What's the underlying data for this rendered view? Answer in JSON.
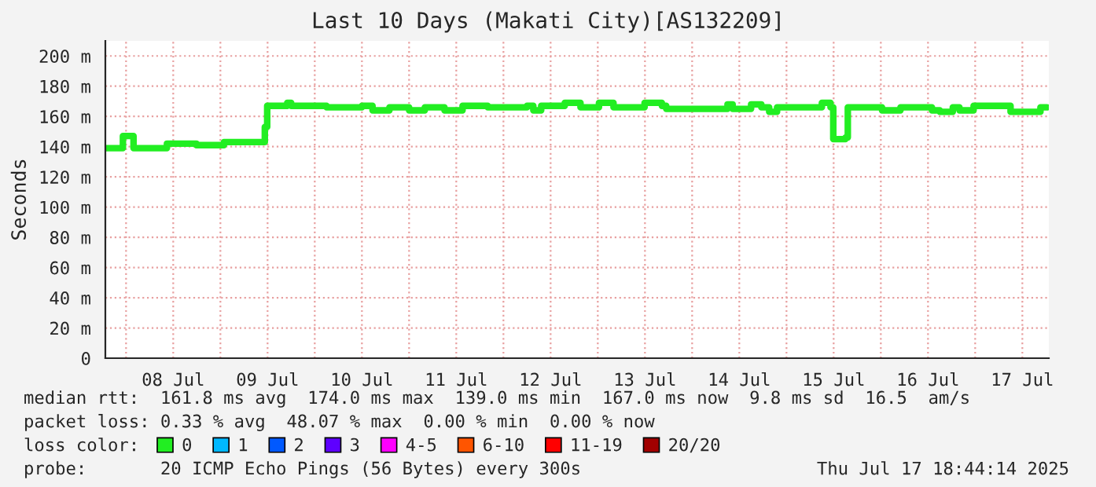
{
  "chart_data": {
    "type": "step",
    "title": "Last 10 Days (Makati City)[AS132209]",
    "ylabel": "Seconds",
    "x": [
      "2025-07-07T19:00",
      "2025-07-07T23:12",
      "2025-07-08T01:54",
      "2025-07-08T10:24",
      "2025-07-08T17:54",
      "2025-07-09T00:54",
      "2025-07-09T11:18",
      "2025-07-09T11:54",
      "2025-07-09T17:00",
      "2025-07-09T18:00",
      "2025-07-10T03:00",
      "2025-07-10T12:00",
      "2025-07-10T14:42",
      "2025-07-10T19:00",
      "2025-07-11T00:00",
      "2025-07-11T04:00",
      "2025-07-11T09:00",
      "2025-07-11T13:36",
      "2025-07-11T20:00",
      "2025-07-12T06:00",
      "2025-07-12T07:36",
      "2025-07-12T09:36",
      "2025-07-12T15:36",
      "2025-07-12T19:36",
      "2025-07-13T00:18",
      "2025-07-13T04:00",
      "2025-07-13T11:54",
      "2025-07-13T16:18",
      "2025-07-13T17:24",
      "2025-07-13T21:24",
      "2025-07-14T09:00",
      "2025-07-14T10:18",
      "2025-07-14T15:00",
      "2025-07-14T17:36",
      "2025-07-14T19:36",
      "2025-07-14T21:36",
      "2025-07-15T09:00",
      "2025-07-15T11:12",
      "2025-07-15T11:54",
      "2025-07-15T15:00",
      "2025-07-15T15:36",
      "2025-07-16T00:18",
      "2025-07-16T05:00",
      "2025-07-16T13:00",
      "2025-07-16T15:00",
      "2025-07-16T18:18",
      "2025-07-16T20:00",
      "2025-07-16T23:36",
      "2025-07-17T09:00",
      "2025-07-17T16:36",
      "2025-07-17T18:18"
    ],
    "series": [
      {
        "name": "0",
        "color": "#22ee22",
        "values": [
          139,
          147,
          139,
          142,
          141,
          143,
          153,
          167,
          169,
          167,
          166,
          167,
          164,
          166,
          164,
          166,
          164,
          167,
          166,
          167,
          164,
          167,
          169,
          166,
          169,
          166,
          169,
          167,
          165,
          165,
          168,
          165,
          168,
          166,
          163,
          166,
          169,
          166,
          145,
          146,
          166,
          164,
          166,
          164,
          163,
          166,
          164,
          167,
          163,
          166,
          166
        ]
      },
      {
        "name": "1",
        "color": "#00b8ff",
        "values": [
          null,
          null,
          null,
          null,
          null,
          null,
          null,
          null,
          null,
          null,
          null,
          null,
          null,
          null,
          null,
          null,
          null,
          null,
          null,
          null,
          null,
          null,
          null,
          null,
          null,
          null,
          null,
          null,
          null,
          null,
          null,
          null,
          null,
          null,
          null,
          null,
          null,
          null,
          null,
          null,
          null,
          null,
          null,
          null,
          null,
          null,
          null,
          null,
          null,
          null,
          null
        ]
      },
      {
        "name": "2",
        "color": "#0059ff",
        "values": [
          null,
          null,
          null,
          null,
          null,
          null,
          null,
          null,
          null,
          null,
          null,
          null,
          null,
          null,
          null,
          null,
          null,
          null,
          null,
          null,
          null,
          null,
          null,
          null,
          null,
          null,
          null,
          null,
          null,
          null,
          null,
          null,
          null,
          null,
          null,
          null,
          null,
          null,
          null,
          null,
          null,
          null,
          null,
          null,
          null,
          null,
          null,
          null,
          null,
          null,
          null
        ]
      },
      {
        "name": "3",
        "color": "#5e00ff",
        "values": [
          null,
          null,
          null,
          null,
          null,
          null,
          null,
          null,
          null,
          null,
          null,
          null,
          null,
          null,
          null,
          null,
          null,
          null,
          null,
          null,
          null,
          null,
          null,
          null,
          null,
          null,
          null,
          null,
          null,
          null,
          null,
          null,
          null,
          null,
          null,
          null,
          null,
          null,
          null,
          null,
          null,
          null,
          null,
          null,
          null,
          null,
          null,
          null,
          null,
          null,
          null
        ]
      },
      {
        "name": "4-5",
        "color": "#ff00ff",
        "values": [
          null,
          null,
          null,
          null,
          null,
          null,
          null,
          null,
          null,
          null,
          null,
          null,
          null,
          null,
          null,
          null,
          null,
          null,
          null,
          null,
          null,
          null,
          null,
          null,
          null,
          null,
          null,
          null,
          null,
          null,
          null,
          null,
          null,
          null,
          null,
          null,
          null,
          null,
          null,
          null,
          null,
          null,
          null,
          null,
          null,
          null,
          null,
          null,
          null,
          null,
          null
        ]
      },
      {
        "name": "6-10",
        "color": "#ff5500",
        "values": [
          null,
          null,
          null,
          null,
          null,
          null,
          null,
          null,
          null,
          null,
          null,
          null,
          null,
          null,
          null,
          null,
          null,
          null,
          null,
          null,
          null,
          null,
          null,
          null,
          null,
          null,
          null,
          null,
          null,
          null,
          null,
          null,
          null,
          null,
          null,
          null,
          null,
          null,
          null,
          null,
          null,
          null,
          null,
          null,
          null,
          null,
          null,
          null,
          null,
          null,
          null
        ]
      },
      {
        "name": "11-19",
        "color": "#ff0000",
        "values": [
          null,
          null,
          null,
          null,
          null,
          null,
          null,
          null,
          null,
          null,
          null,
          null,
          null,
          null,
          null,
          null,
          null,
          null,
          null,
          null,
          null,
          null,
          null,
          null,
          null,
          null,
          null,
          null,
          null,
          null,
          null,
          null,
          null,
          null,
          null,
          null,
          null,
          null,
          null,
          null,
          null,
          null,
          null,
          null,
          null,
          null,
          null,
          null,
          null,
          null,
          null
        ]
      },
      {
        "name": "20/20",
        "color": "#a10000",
        "values": [
          null,
          null,
          null,
          null,
          null,
          null,
          null,
          null,
          null,
          null,
          null,
          null,
          null,
          null,
          null,
          null,
          null,
          null,
          null,
          null,
          null,
          null,
          null,
          null,
          null,
          null,
          null,
          null,
          null,
          null,
          null,
          null,
          null,
          null,
          null,
          null,
          null,
          null,
          null,
          null,
          null,
          null,
          null,
          null,
          null,
          null,
          null,
          null,
          null,
          null,
          null
        ]
      }
    ],
    "legend": "bottom",
    "legend_title": "loss color:",
    "xlim": [
      "2025-07-07T18:44",
      "2025-07-17T18:44"
    ],
    "xticks": [
      {
        "value": "2025-07-08T00:00",
        "label": null
      },
      {
        "value": "2025-07-08T12:00",
        "label": "08 Jul"
      },
      {
        "value": "2025-07-09T00:00",
        "label": null
      },
      {
        "value": "2025-07-09T12:00",
        "label": "09 Jul"
      },
      {
        "value": "2025-07-10T00:00",
        "label": null
      },
      {
        "value": "2025-07-10T12:00",
        "label": "10 Jul"
      },
      {
        "value": "2025-07-11T00:00",
        "label": null
      },
      {
        "value": "2025-07-11T12:00",
        "label": "11 Jul"
      },
      {
        "value": "2025-07-12T00:00",
        "label": null
      },
      {
        "value": "2025-07-12T12:00",
        "label": "12 Jul"
      },
      {
        "value": "2025-07-13T00:00",
        "label": null
      },
      {
        "value": "2025-07-13T12:00",
        "label": "13 Jul"
      },
      {
        "value": "2025-07-14T00:00",
        "label": null
      },
      {
        "value": "2025-07-14T12:00",
        "label": "14 Jul"
      },
      {
        "value": "2025-07-15T00:00",
        "label": null
      },
      {
        "value": "2025-07-15T12:00",
        "label": "15 Jul"
      },
      {
        "value": "2025-07-16T00:00",
        "label": null
      },
      {
        "value": "2025-07-16T12:00",
        "label": "16 Jul"
      },
      {
        "value": "2025-07-17T00:00",
        "label": null
      },
      {
        "value": "2025-07-17T12:00",
        "label": "17 Jul"
      }
    ],
    "ylim": [
      0,
      210
    ],
    "yticks": [
      0,
      {
        "value": 20,
        "label": "20 m"
      },
      {
        "value": 40,
        "label": "40 m"
      },
      {
        "value": 60,
        "label": "60 m"
      },
      {
        "value": 80,
        "label": "80 m"
      },
      {
        "value": 100,
        "label": "100 m"
      },
      {
        "value": 120,
        "label": "120 m"
      },
      {
        "value": 140,
        "label": "140 m"
      },
      {
        "value": 160,
        "label": "160 m"
      },
      {
        "value": 180,
        "label": "180 m"
      },
      {
        "value": 200,
        "label": "200 m"
      }
    ],
    "grid": true,
    "line_style": "solid",
    "annotations": [
      "median rtt:  161.8 ms avg  174.0 ms max  139.0 ms min  167.0 ms now  9.8 ms sd  16.5  am/s",
      "packet loss: 0.33 % avg  48.07 % max  0.00 % min  0.00 % now",
      "probe:       20 ICMP Echo Pings (56 Bytes) every 300s",
      "Thu Jul 17 18:44:14 2025"
    ]
  }
}
